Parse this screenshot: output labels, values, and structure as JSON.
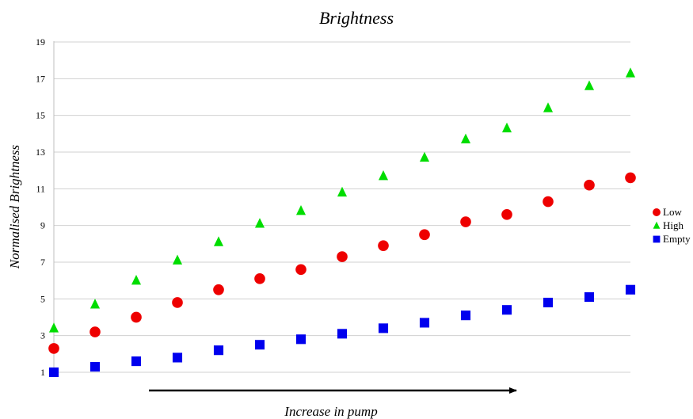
{
  "chart_data": {
    "type": "scatter",
    "title": "Brightness",
    "xlabel": "Increase in pump",
    "ylabel": "Normalised Brightness",
    "x": [
      1,
      2,
      3,
      4,
      5,
      6,
      7,
      8,
      9,
      10,
      11,
      12,
      13,
      14,
      15
    ],
    "ylim": [
      1,
      19
    ],
    "yticks": [
      "1",
      "3",
      "5",
      "7",
      "9",
      "11",
      "13",
      "15",
      "17",
      "19"
    ],
    "grid": true,
    "legend": "right",
    "series": [
      {
        "name": "Low",
        "marker": "circle",
        "color": "#ee0000",
        "values": [
          2.3,
          3.2,
          4.0,
          4.8,
          5.5,
          6.1,
          6.6,
          7.3,
          7.9,
          8.5,
          9.2,
          9.6,
          10.3,
          11.2,
          11.6
        ]
      },
      {
        "name": "High",
        "marker": "triangle",
        "color": "#00dd00",
        "values": [
          3.4,
          4.7,
          6.0,
          7.1,
          8.1,
          9.1,
          9.8,
          10.8,
          11.7,
          12.7,
          13.7,
          14.3,
          15.4,
          16.6,
          17.3
        ]
      },
      {
        "name": "Empty",
        "marker": "square",
        "color": "#0000ee",
        "values": [
          1.0,
          1.3,
          1.6,
          1.8,
          2.2,
          2.5,
          2.8,
          3.1,
          3.4,
          3.7,
          4.1,
          4.4,
          4.8,
          5.1,
          5.5
        ]
      }
    ]
  }
}
